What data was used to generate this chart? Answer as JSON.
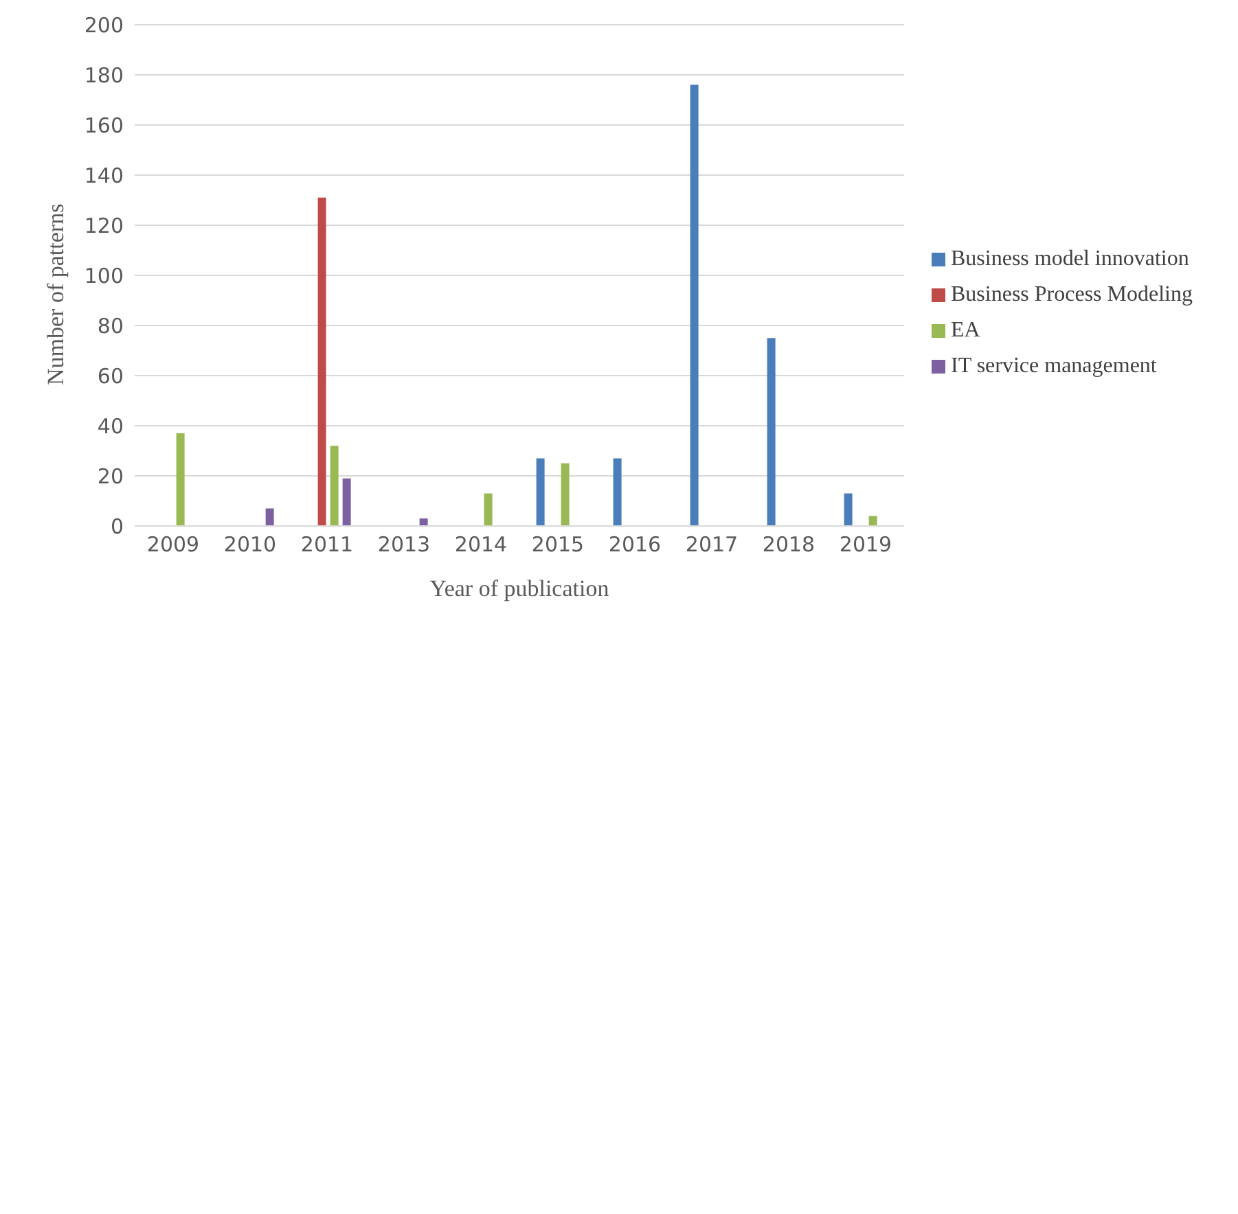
{
  "chart_data": {
    "type": "bar",
    "xlabel": "Year of publication",
    "ylabel": "Number of patterns",
    "categories": [
      "2009",
      "2010",
      "2011",
      "2013",
      "2014",
      "2015",
      "2016",
      "2017",
      "2018",
      "2019"
    ],
    "series": [
      {
        "name": "Business model innovation",
        "color": "#4a7ebb",
        "values": [
          null,
          null,
          null,
          null,
          null,
          27,
          27,
          176,
          75,
          13
        ]
      },
      {
        "name": "Business Process Modeling",
        "color": "#be4b48",
        "values": [
          null,
          null,
          131,
          null,
          null,
          null,
          null,
          null,
          null,
          null
        ]
      },
      {
        "name": "EA",
        "color": "#98b954",
        "values": [
          37,
          null,
          32,
          null,
          13,
          25,
          null,
          null,
          null,
          4
        ]
      },
      {
        "name": "IT service management",
        "color": "#7d60a0",
        "values": [
          null,
          7,
          19,
          3,
          null,
          null,
          null,
          null,
          null,
          null
        ]
      }
    ],
    "ylim": [
      0,
      200
    ],
    "yticks": [
      0,
      20,
      40,
      60,
      80,
      100,
      120,
      140,
      160,
      180,
      200
    ],
    "grid": "y",
    "legend": "right"
  }
}
